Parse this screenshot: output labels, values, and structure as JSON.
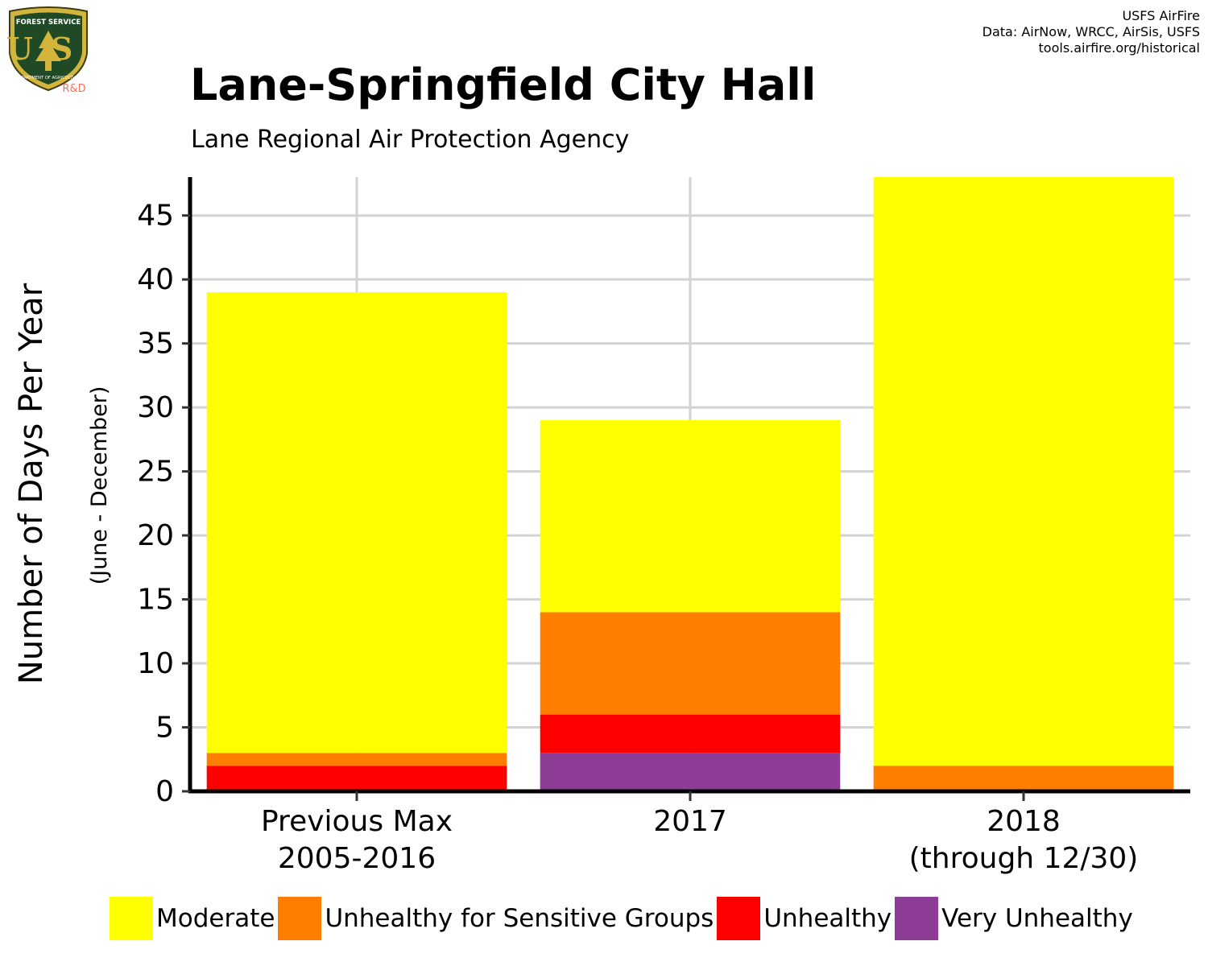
{
  "header": {
    "title": "Lane-Springfield City Hall",
    "subtitle": "Lane Regional Air Protection Agency",
    "credits": [
      "USFS AirFire",
      "Data: AirNow, WRCC, AirSis, USFS",
      "tools.airfire.org/historical"
    ]
  },
  "logo": {
    "text_top": "FOREST SERVICE",
    "text_main": "US",
    "text_bottom": "DEPARTMENT OF AGRICULTURE",
    "text_rd": "R&D",
    "icon": "forest-service-shield"
  },
  "chart_data": {
    "type": "bar",
    "stacked": true,
    "categories": [
      [
        "Previous Max",
        "2005-2016"
      ],
      [
        "2017"
      ],
      [
        "2018",
        "(through 12/30)"
      ]
    ],
    "series": [
      {
        "name": "Very Unhealthy",
        "color": "#8E3D96",
        "values": [
          0,
          3,
          0
        ]
      },
      {
        "name": "Unhealthy",
        "color": "#FF0000",
        "values": [
          2,
          3,
          0
        ]
      },
      {
        "name": "Unhealthy for Sensitive Groups",
        "color": "#FF7E00",
        "values": [
          1,
          8,
          2
        ]
      },
      {
        "name": "Moderate",
        "color": "#FFFF00",
        "values": [
          36,
          15,
          46
        ]
      }
    ],
    "legend_order": [
      "Moderate",
      "Unhealthy for Sensitive Groups",
      "Unhealthy",
      "Very Unhealthy"
    ],
    "ylabel": "Number of Days Per Year",
    "ylabel_sub": "(June - December)",
    "ylim": [
      0,
      48
    ],
    "yticks": [
      0,
      5,
      10,
      15,
      20,
      25,
      30,
      35,
      40,
      45
    ],
    "grid": true,
    "legend_position": "bottom"
  }
}
